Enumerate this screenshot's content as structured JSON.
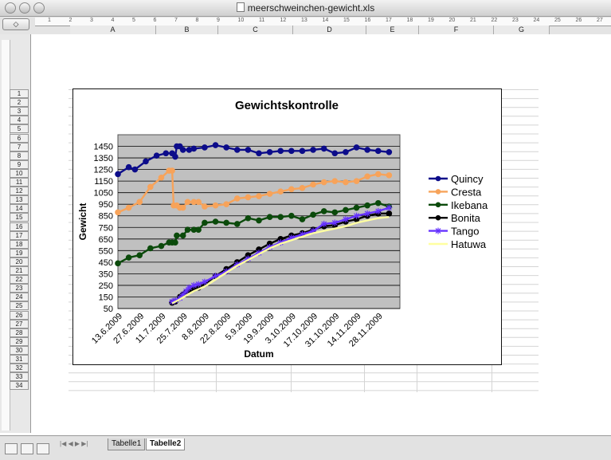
{
  "window": {
    "title": "meerschweinchen-gewicht.xls"
  },
  "toolbar": {
    "nav_symbol": "◇"
  },
  "ruler": {
    "h_marks": [
      "1",
      "2",
      "3",
      "4",
      "5",
      "6",
      "7",
      "8",
      "9",
      "10",
      "11",
      "12",
      "13",
      "14",
      "15",
      "16",
      "17",
      "18",
      "19",
      "20",
      "21",
      "22",
      "23",
      "24",
      "25",
      "26",
      "27"
    ]
  },
  "columns": [
    "A",
    "B",
    "C",
    "D",
    "E",
    "F",
    "G"
  ],
  "rows": [
    "1",
    "2",
    "3",
    "4",
    "5",
    "6",
    "7",
    "8",
    "9",
    "10",
    "11",
    "12",
    "13",
    "14",
    "15",
    "16",
    "17",
    "18",
    "19",
    "20",
    "21",
    "22",
    "23",
    "24",
    "25",
    "26",
    "27",
    "28",
    "29",
    "30",
    "31",
    "32",
    "33",
    "34"
  ],
  "sheet_tabs": [
    {
      "label": "Tabelle1",
      "active": false
    },
    {
      "label": "Tabelle2",
      "active": true
    }
  ],
  "chart_data": {
    "type": "line",
    "title": "Gewichtskontrolle",
    "xlabel": "Datum",
    "ylabel": "Gewicht",
    "x_tick_labels": [
      "13.6.2009",
      "27.6.2009",
      "11.7.2009",
      "25.7.2009",
      "8.8.2009",
      "22.8.2009",
      "5.9.2009",
      "19.9.2009",
      "3.10.2009",
      "17.10.2009",
      "31.10.2009",
      "14.11.2009",
      "28.11.2009"
    ],
    "y_ticks": [
      50,
      150,
      250,
      350,
      450,
      550,
      650,
      750,
      850,
      950,
      1050,
      1150,
      1250,
      1350,
      1450
    ],
    "ylim": [
      50,
      1550
    ],
    "x_range_days": [
      0,
      182
    ],
    "grid": true,
    "legend_position": "right",
    "series": [
      {
        "name": "Quincy",
        "color": "#0c0c8a",
        "marker": "circle",
        "points": [
          [
            0,
            1210
          ],
          [
            7,
            1270
          ],
          [
            11,
            1250
          ],
          [
            18,
            1320
          ],
          [
            25,
            1370
          ],
          [
            31,
            1390
          ],
          [
            35,
            1390
          ],
          [
            37,
            1360
          ],
          [
            38,
            1450
          ],
          [
            40,
            1450
          ],
          [
            42,
            1420
          ],
          [
            46,
            1420
          ],
          [
            49,
            1430
          ],
          [
            56,
            1440
          ],
          [
            63,
            1460
          ],
          [
            70,
            1440
          ],
          [
            77,
            1420
          ],
          [
            84,
            1420
          ],
          [
            91,
            1390
          ],
          [
            98,
            1400
          ],
          [
            105,
            1410
          ],
          [
            112,
            1410
          ],
          [
            119,
            1410
          ],
          [
            126,
            1420
          ],
          [
            133,
            1430
          ],
          [
            140,
            1390
          ],
          [
            147,
            1400
          ],
          [
            154,
            1440
          ],
          [
            161,
            1420
          ],
          [
            168,
            1410
          ],
          [
            175,
            1400
          ]
        ]
      },
      {
        "name": "Cresta",
        "color": "#f7a35a",
        "marker": "circle",
        "points": [
          [
            0,
            880
          ],
          [
            7,
            920
          ],
          [
            14,
            970
          ],
          [
            21,
            1100
          ],
          [
            28,
            1180
          ],
          [
            33,
            1240
          ],
          [
            35,
            1240
          ],
          [
            36,
            940
          ],
          [
            38,
            940
          ],
          [
            40,
            920
          ],
          [
            42,
            920
          ],
          [
            45,
            970
          ],
          [
            49,
            970
          ],
          [
            52,
            970
          ],
          [
            56,
            930
          ],
          [
            63,
            940
          ],
          [
            70,
            950
          ],
          [
            77,
            1000
          ],
          [
            84,
            1010
          ],
          [
            91,
            1020
          ],
          [
            98,
            1040
          ],
          [
            105,
            1060
          ],
          [
            112,
            1080
          ],
          [
            119,
            1090
          ],
          [
            126,
            1120
          ],
          [
            133,
            1140
          ],
          [
            140,
            1150
          ],
          [
            147,
            1140
          ],
          [
            154,
            1150
          ],
          [
            161,
            1190
          ],
          [
            168,
            1210
          ],
          [
            175,
            1200
          ]
        ]
      },
      {
        "name": "Ikebana",
        "color": "#0b4a0b",
        "marker": "circle",
        "points": [
          [
            0,
            440
          ],
          [
            7,
            490
          ],
          [
            14,
            510
          ],
          [
            21,
            570
          ],
          [
            28,
            590
          ],
          [
            33,
            620
          ],
          [
            35,
            620
          ],
          [
            37,
            620
          ],
          [
            38,
            680
          ],
          [
            42,
            680
          ],
          [
            45,
            730
          ],
          [
            49,
            730
          ],
          [
            52,
            730
          ],
          [
            56,
            790
          ],
          [
            63,
            800
          ],
          [
            70,
            790
          ],
          [
            77,
            780
          ],
          [
            84,
            830
          ],
          [
            91,
            810
          ],
          [
            98,
            840
          ],
          [
            105,
            840
          ],
          [
            112,
            850
          ],
          [
            119,
            820
          ],
          [
            126,
            860
          ],
          [
            133,
            890
          ],
          [
            140,
            880
          ],
          [
            147,
            900
          ],
          [
            154,
            920
          ],
          [
            161,
            940
          ],
          [
            168,
            960
          ],
          [
            175,
            930
          ]
        ]
      },
      {
        "name": "Bonita",
        "color": "#000000",
        "marker": "circle",
        "points": [
          [
            35,
            100
          ],
          [
            37,
            110
          ],
          [
            40,
            150
          ],
          [
            42,
            170
          ],
          [
            44,
            190
          ],
          [
            46,
            200
          ],
          [
            49,
            220
          ],
          [
            52,
            230
          ],
          [
            56,
            260
          ],
          [
            63,
            330
          ],
          [
            70,
            390
          ],
          [
            77,
            450
          ],
          [
            84,
            510
          ],
          [
            91,
            560
          ],
          [
            98,
            610
          ],
          [
            105,
            650
          ],
          [
            112,
            680
          ],
          [
            119,
            700
          ],
          [
            126,
            730
          ],
          [
            133,
            760
          ],
          [
            140,
            770
          ],
          [
            147,
            800
          ],
          [
            154,
            820
          ],
          [
            161,
            850
          ],
          [
            168,
            870
          ],
          [
            175,
            870
          ]
        ]
      },
      {
        "name": "Tango",
        "color": "#6633ff",
        "marker": "star",
        "points": [
          [
            35,
            110
          ],
          [
            37,
            120
          ],
          [
            40,
            140
          ],
          [
            42,
            170
          ],
          [
            44,
            200
          ],
          [
            46,
            230
          ],
          [
            49,
            250
          ],
          [
            52,
            260
          ],
          [
            56,
            280
          ],
          [
            63,
            330
          ],
          [
            70,
            370
          ],
          [
            77,
            430
          ],
          [
            84,
            480
          ],
          [
            91,
            530
          ],
          [
            98,
            580
          ],
          [
            105,
            620
          ],
          [
            112,
            660
          ],
          [
            119,
            690
          ],
          [
            126,
            720
          ],
          [
            133,
            780
          ],
          [
            140,
            790
          ],
          [
            147,
            820
          ],
          [
            154,
            850
          ],
          [
            161,
            870
          ],
          [
            168,
            890
          ],
          [
            175,
            920
          ]
        ]
      },
      {
        "name": "Hatuwa",
        "color": "#ffffa0",
        "marker": "none",
        "points": [
          [
            35,
            95
          ],
          [
            40,
            130
          ],
          [
            45,
            170
          ],
          [
            49,
            200
          ],
          [
            56,
            240
          ],
          [
            63,
            300
          ],
          [
            70,
            360
          ],
          [
            77,
            420
          ],
          [
            84,
            470
          ],
          [
            91,
            520
          ],
          [
            98,
            570
          ],
          [
            105,
            610
          ],
          [
            112,
            640
          ],
          [
            119,
            670
          ],
          [
            126,
            700
          ],
          [
            133,
            720
          ],
          [
            140,
            740
          ],
          [
            147,
            760
          ],
          [
            154,
            790
          ],
          [
            161,
            810
          ],
          [
            168,
            830
          ],
          [
            175,
            840
          ]
        ]
      }
    ]
  }
}
